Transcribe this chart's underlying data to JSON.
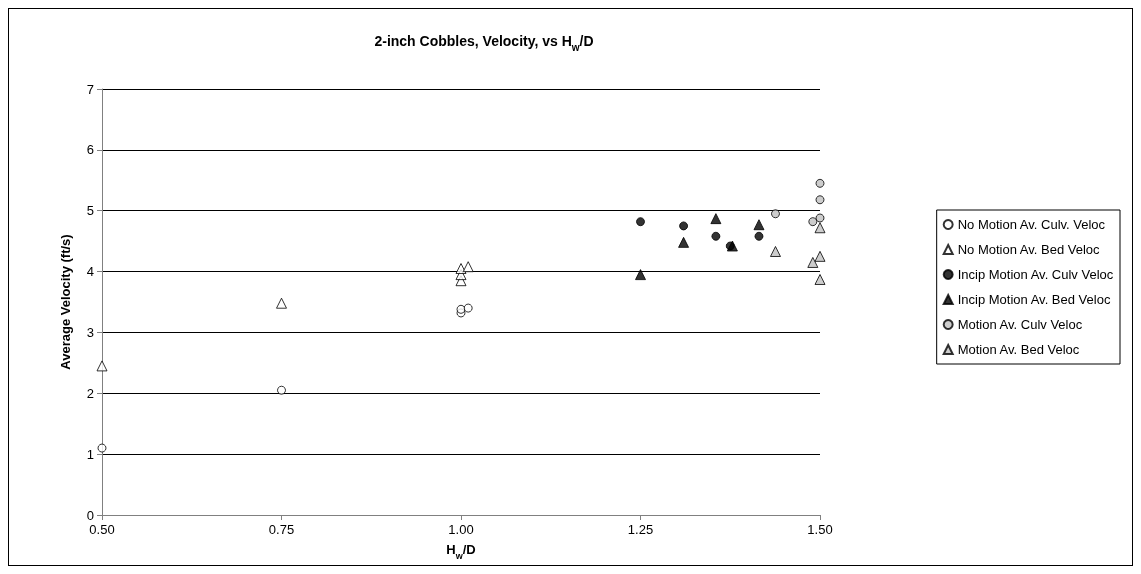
{
  "chart_data": {
    "type": "scatter",
    "title": "2-inch Cobbles, Velocity, vs H$_{w}$/D",
    "xlabel": "H$_{w}$/D",
    "ylabel": "Average Velocity (ft/s)",
    "xlim": [
      0.5,
      1.5
    ],
    "xticks": [
      {
        "value": 0.5,
        "label": "0.50"
      },
      {
        "value": 0.75,
        "label": "0.75"
      },
      {
        "value": 1.0,
        "label": "1.00"
      },
      {
        "value": 1.25,
        "label": "1.25"
      },
      {
        "value": 1.5,
        "label": "1.50"
      }
    ],
    "ylim": [
      0,
      7
    ],
    "yticks": [
      0,
      1,
      2,
      3,
      4,
      5,
      6,
      7
    ],
    "grid": "y",
    "legend": "right",
    "series": [
      {
        "name": "No Motion Av. Culv. Veloc",
        "color": "#ffffff",
        "marker": "circle",
        "x": [
          0.5,
          0.75,
          1.0,
          1.0,
          1.01
        ],
        "values": [
          1.1,
          2.05,
          3.32,
          3.38,
          3.4
        ]
      },
      {
        "name": "No Motion Av. Bed Veloc",
        "color": "#ffffff",
        "marker": "triangle",
        "x": [
          0.5,
          0.75,
          1.0,
          1.0,
          1.0,
          1.01
        ],
        "values": [
          2.45,
          3.48,
          3.85,
          3.95,
          4.05,
          4.08
        ]
      },
      {
        "name": "Incip Motion Av. Culv Veloc",
        "color": "#000000",
        "marker": "circle",
        "x": [
          1.25,
          1.31,
          1.355,
          1.375,
          1.415
        ],
        "values": [
          4.82,
          4.75,
          4.58,
          4.42,
          4.58
        ]
      },
      {
        "name": "Incip Motion Av. Bed Veloc",
        "color": "#000000",
        "marker": "triangle",
        "x": [
          1.25,
          1.31,
          1.355,
          1.378,
          1.415
        ],
        "values": [
          3.95,
          4.48,
          4.87,
          4.42,
          4.77
        ]
      },
      {
        "name": "Motion Av. Culv Veloc",
        "color": "#c0c0c0",
        "marker": "circle",
        "x": [
          1.438,
          1.49,
          1.5,
          1.5,
          1.5
        ],
        "values": [
          4.95,
          4.82,
          5.45,
          5.18,
          4.88
        ]
      },
      {
        "name": "Motion Av. Bed Veloc",
        "color": "#c0c0c0",
        "marker": "triangle",
        "x": [
          1.438,
          1.49,
          1.5,
          1.5,
          1.5
        ],
        "values": [
          4.33,
          4.15,
          4.72,
          4.25,
          3.87
        ]
      }
    ]
  }
}
